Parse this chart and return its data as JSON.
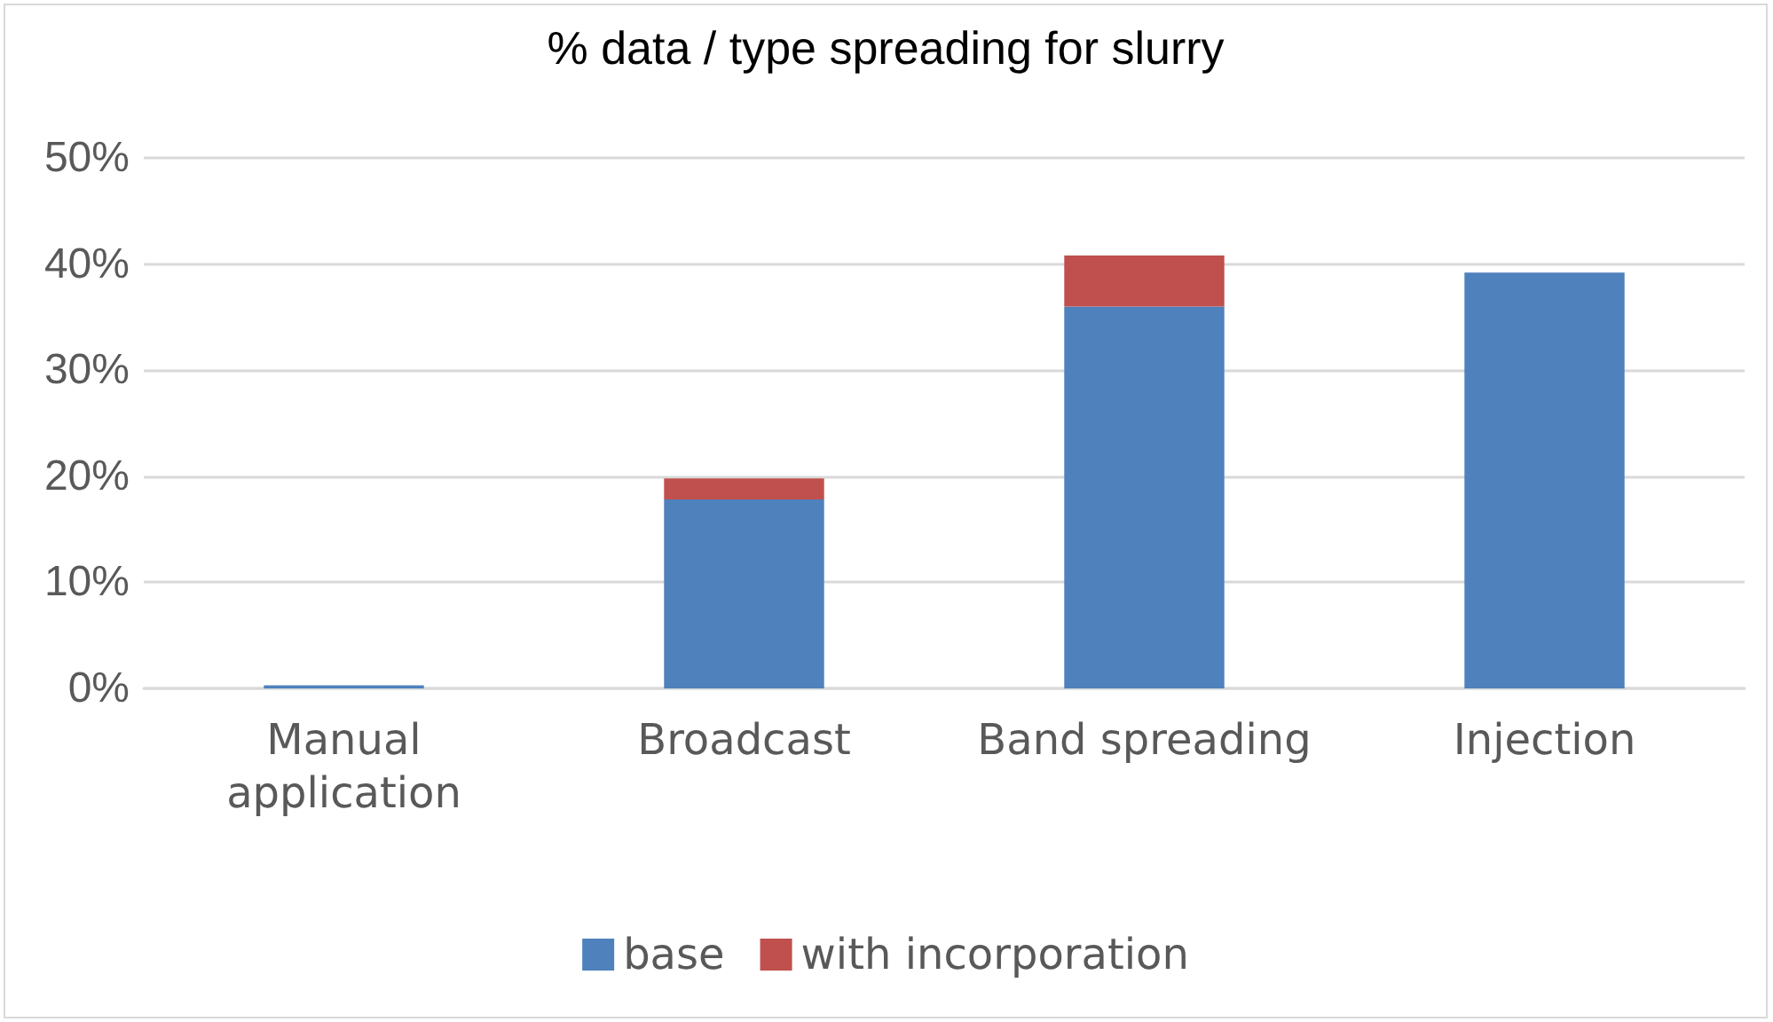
{
  "chart_data": {
    "type": "bar",
    "title": "% data / type spreading for slurry",
    "categories": [
      "Manual application",
      "Broadcast",
      "Band spreading",
      "Injection"
    ],
    "series": [
      {
        "name": "base",
        "color": "#4f81bd",
        "values": [
          0.3,
          17.8,
          36,
          39.2
        ]
      },
      {
        "name": "with incorporation",
        "color": "#c0504d",
        "values": [
          0,
          2,
          4.8,
          0
        ]
      }
    ],
    "stacked": true,
    "ylim": [
      0,
      50
    ],
    "yticks": [
      {
        "value": 0,
        "label": "0%"
      },
      {
        "value": 10,
        "label": "10%"
      },
      {
        "value": 20,
        "label": "20%"
      },
      {
        "value": 30,
        "label": "30%"
      },
      {
        "value": 40,
        "label": "40%"
      },
      {
        "value": 50,
        "label": "50%"
      }
    ],
    "grid": "y",
    "legend": "bottom"
  }
}
